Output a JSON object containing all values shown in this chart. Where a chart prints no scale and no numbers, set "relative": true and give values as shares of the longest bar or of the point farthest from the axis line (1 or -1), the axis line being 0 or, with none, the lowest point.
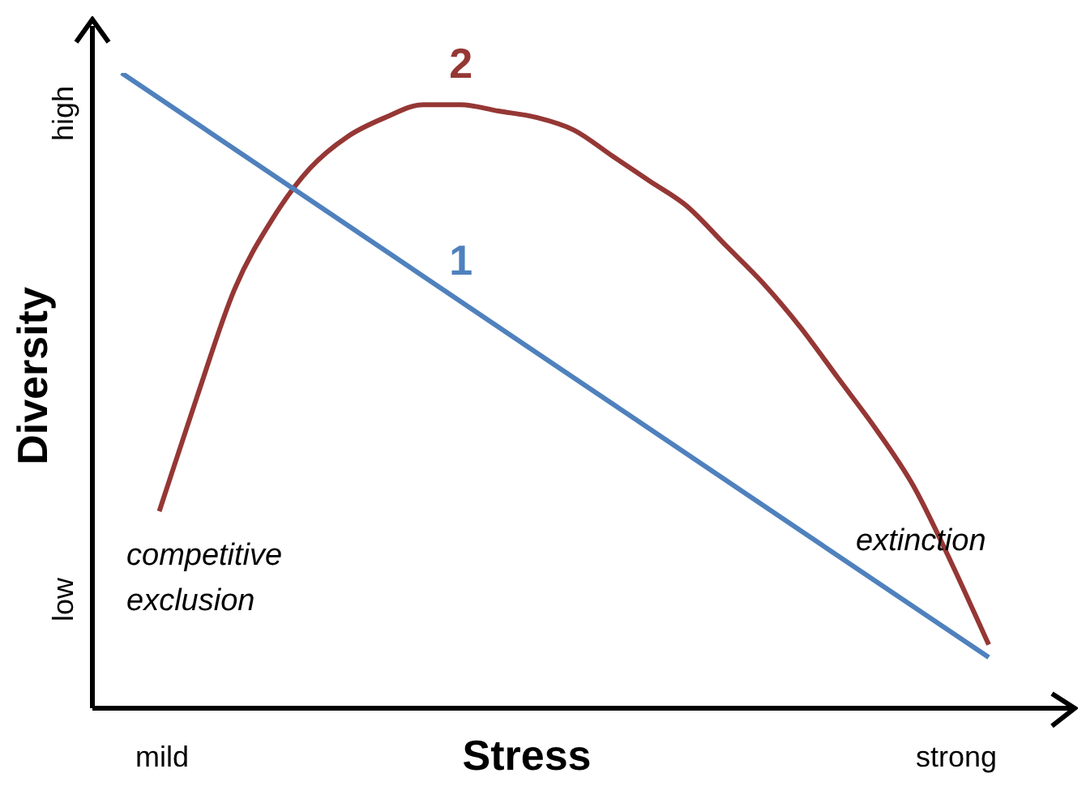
{
  "chart_data": {
    "type": "line",
    "relative": true,
    "xlabel": "Stress",
    "ylabel": "Diversity",
    "legend": false,
    "marker": "none",
    "line_style": "solid",
    "categories": [
      null,
      null,
      null,
      null,
      null,
      null,
      null,
      null,
      null,
      null,
      null,
      null,
      null,
      null,
      null,
      null,
      null,
      null,
      null,
      null,
      null,
      null,
      null,
      null
    ],
    "series": [
      {
        "name": "1",
        "color": "#4f81bd",
        "values": [
          1,
          null,
          null,
          null,
          null,
          null,
          null,
          null,
          null,
          null,
          null,
          null,
          null,
          null,
          null,
          null,
          null,
          null,
          null,
          null,
          null,
          null,
          null,
          0.08
        ]
      },
      {
        "name": "2",
        "color": "#953735",
        "values": [
          null,
          0.31,
          0.49,
          0.66,
          0.77,
          0.85,
          0.9,
          0.93,
          0.95,
          0.95,
          0.94,
          0.93,
          0.91,
          0.87,
          0.83,
          0.79,
          0.73,
          0.67,
          0.6,
          0.52,
          0.44,
          0.35,
          0.23,
          0.1
        ]
      }
    ],
    "annotations": [
      "mild",
      "strong",
      "low",
      "high",
      "competitive\nexclusion",
      "extinction"
    ]
  }
}
